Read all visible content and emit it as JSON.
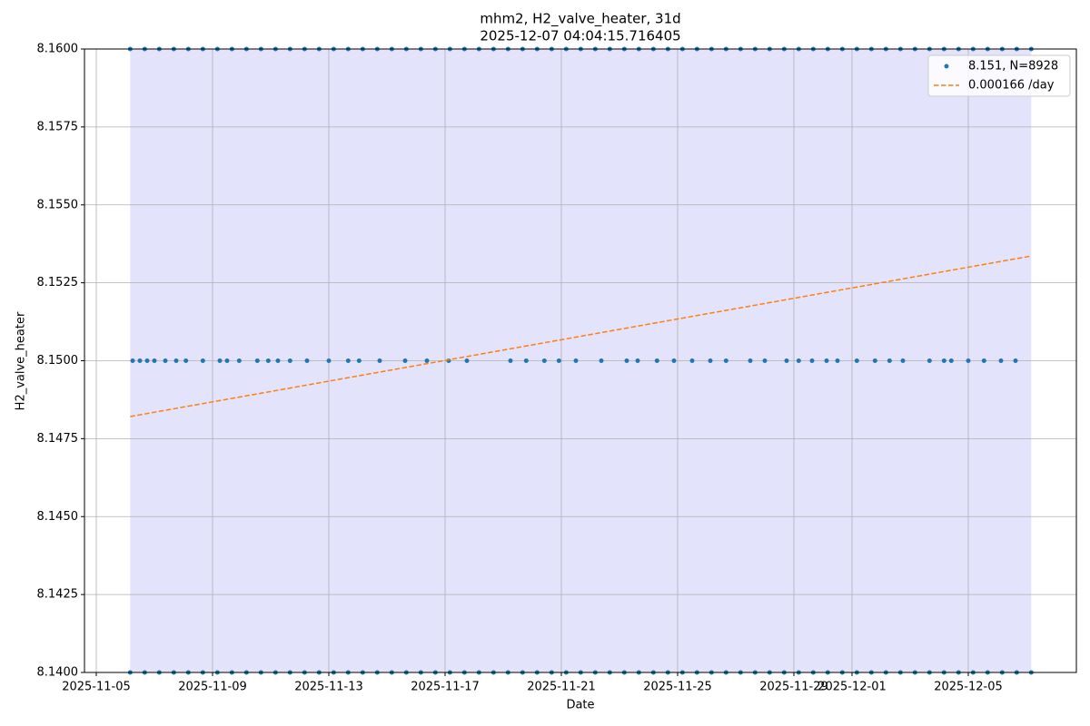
{
  "chart_data": {
    "type": "scatter",
    "title": "mhm2, H2_valve_heater, 31d",
    "subtitle": "2025-12-07 04:04:15.716405",
    "xlabel": "Date",
    "ylabel": "H2_valve_heater",
    "xlim": [
      "2025-11-04 14:15",
      "2025-12-08 17:15"
    ],
    "ylim": [
      8.14,
      8.16
    ],
    "xticks": [
      "2025-11-05",
      "2025-11-09",
      "2025-11-13",
      "2025-11-17",
      "2025-11-21",
      "2025-11-25",
      "2025-11-29",
      "2025-12-01",
      "2025-12-05"
    ],
    "yticks": [
      {
        "value": 8.14,
        "label": "8.1400"
      },
      8.1425,
      {
        "value": 8.145,
        "label": "8.1450"
      },
      8.1475,
      {
        "value": 8.15,
        "label": "8.1500"
      },
      8.1525,
      {
        "value": 8.155,
        "label": "8.1550"
      },
      8.1575,
      {
        "value": 8.16,
        "label": "8.1600"
      }
    ],
    "grid": true,
    "legend": "upper right",
    "span": {
      "x": [
        "2025-11-06 04:00",
        "2025-12-07 04:00"
      ],
      "color": "#e3e3fc"
    },
    "series": [
      {
        "name": "8.151, N=8928",
        "type": "scatter",
        "color": "#1f77b4",
        "x": [
          "2025-11-06 04:00",
          "2025-11-06 16:00",
          "2025-11-07 04:00",
          "2025-11-07 16:00",
          "2025-11-08 04:00",
          "2025-11-08 16:00",
          "2025-11-09 04:00",
          "2025-11-09 16:00",
          "2025-11-10 04:00",
          "2025-11-10 16:00",
          "2025-11-11 04:00",
          "2025-11-11 16:00",
          "2025-11-12 04:00",
          "2025-11-12 16:00",
          "2025-11-13 04:00",
          "2025-11-13 16:00",
          "2025-11-14 04:00",
          "2025-11-14 16:00",
          "2025-11-15 04:00",
          "2025-11-15 16:00",
          "2025-11-16 04:00",
          "2025-11-16 16:00",
          "2025-11-17 04:00",
          "2025-11-17 16:00",
          "2025-11-18 04:00",
          "2025-11-18 16:00",
          "2025-11-19 04:00",
          "2025-11-19 16:00",
          "2025-11-20 04:00",
          "2025-11-20 16:00",
          "2025-11-21 04:00",
          "2025-11-21 16:00",
          "2025-11-22 04:00",
          "2025-11-22 16:00",
          "2025-11-23 04:00",
          "2025-11-23 16:00",
          "2025-11-24 04:00",
          "2025-11-24 16:00",
          "2025-11-25 04:00",
          "2025-11-25 16:00",
          "2025-11-26 04:00",
          "2025-11-26 16:00",
          "2025-11-27 04:00",
          "2025-11-27 16:00",
          "2025-11-28 04:00",
          "2025-11-28 16:00",
          "2025-11-29 04:00",
          "2025-11-29 16:00",
          "2025-11-30 04:00",
          "2025-11-30 16:00",
          "2025-12-01 04:00",
          "2025-12-01 16:00",
          "2025-12-02 04:00",
          "2025-12-02 16:00",
          "2025-12-03 04:00",
          "2025-12-03 16:00",
          "2025-12-04 04:00",
          "2025-12-04 16:00",
          "2025-12-05 04:00",
          "2025-12-05 16:00",
          "2025-12-06 04:00",
          "2025-12-06 16:00",
          "2025-12-07 04:00",
          "2025-11-06 04:00",
          "2025-11-06 16:00",
          "2025-11-07 04:00",
          "2025-11-07 16:00",
          "2025-11-08 04:00",
          "2025-11-08 16:00",
          "2025-11-09 04:00",
          "2025-11-09 16:00",
          "2025-11-10 04:00",
          "2025-11-10 16:00",
          "2025-11-11 04:00",
          "2025-11-11 16:00",
          "2025-11-12 04:00",
          "2025-11-12 16:00",
          "2025-11-13 04:00",
          "2025-11-13 16:00",
          "2025-11-14 04:00",
          "2025-11-14 16:00",
          "2025-11-15 04:00",
          "2025-11-15 16:00",
          "2025-11-16 04:00",
          "2025-11-16 16:00",
          "2025-11-17 04:00",
          "2025-11-17 16:00",
          "2025-11-18 04:00",
          "2025-11-18 16:00",
          "2025-11-19 04:00",
          "2025-11-19 16:00",
          "2025-11-20 04:00",
          "2025-11-20 16:00",
          "2025-11-21 04:00",
          "2025-11-21 16:00",
          "2025-11-22 04:00",
          "2025-11-22 16:00",
          "2025-11-23 04:00",
          "2025-11-23 16:00",
          "2025-11-24 04:00",
          "2025-11-24 16:00",
          "2025-11-25 04:00",
          "2025-11-25 16:00",
          "2025-11-26 04:00",
          "2025-11-26 16:00",
          "2025-11-27 04:00",
          "2025-11-27 16:00",
          "2025-11-28 04:00",
          "2025-11-28 16:00",
          "2025-11-29 04:00",
          "2025-11-29 16:00",
          "2025-11-30 04:00",
          "2025-11-30 16:00",
          "2025-12-01 04:00",
          "2025-12-01 16:00",
          "2025-12-02 04:00",
          "2025-12-02 16:00",
          "2025-12-03 04:00",
          "2025-12-03 16:00",
          "2025-12-04 04:00",
          "2025-12-04 16:00",
          "2025-12-05 04:00",
          "2025-12-05 16:00",
          "2025-12-06 04:00",
          "2025-12-06 16:00",
          "2025-12-07 04:00",
          "2025-11-06 06:00",
          "2025-11-06 12:00",
          "2025-11-06 18:00",
          "2025-11-07 00:00",
          "2025-11-07 09:00",
          "2025-11-07 18:00",
          "2025-11-08 02:00",
          "2025-11-08 16:00",
          "2025-11-09 06:00",
          "2025-11-09 12:00",
          "2025-11-09 22:00",
          "2025-11-10 13:00",
          "2025-11-10 22:00",
          "2025-11-11 06:00",
          "2025-11-11 16:00",
          "2025-11-12 06:00",
          "2025-11-13 00:00",
          "2025-11-13 16:00",
          "2025-11-14 01:00",
          "2025-11-14 18:00",
          "2025-11-15 15:00",
          "2025-11-16 09:00",
          "2025-11-17 03:00",
          "2025-11-17 18:00",
          "2025-11-19 06:00",
          "2025-11-19 19:00",
          "2025-11-20 10:00",
          "2025-11-20 22:00",
          "2025-11-21 12:00",
          "2025-11-22 09:00",
          "2025-11-23 06:00",
          "2025-11-23 15:00",
          "2025-11-24 07:00",
          "2025-11-24 21:00",
          "2025-11-25 12:00",
          "2025-11-26 03:00",
          "2025-11-26 16:00",
          "2025-11-27 12:00",
          "2025-11-28 00:00",
          "2025-11-28 18:00",
          "2025-11-29 04:00",
          "2025-11-29 15:00",
          "2025-11-30 03:00",
          "2025-11-30 12:00",
          "2025-12-01 04:00",
          "2025-12-01 19:00",
          "2025-12-02 07:00",
          "2025-12-02 18:00",
          "2025-12-03 16:00",
          "2025-12-04 04:00",
          "2025-12-04 10:00",
          "2025-12-05 00:00",
          "2025-12-05 13:00",
          "2025-12-06 03:00",
          "2025-12-06 15:00"
        ],
        "values": [
          8.16,
          8.16,
          8.16,
          8.16,
          8.16,
          8.16,
          8.16,
          8.16,
          8.16,
          8.16,
          8.16,
          8.16,
          8.16,
          8.16,
          8.16,
          8.16,
          8.16,
          8.16,
          8.16,
          8.16,
          8.16,
          8.16,
          8.16,
          8.16,
          8.16,
          8.16,
          8.16,
          8.16,
          8.16,
          8.16,
          8.16,
          8.16,
          8.16,
          8.16,
          8.16,
          8.16,
          8.16,
          8.16,
          8.16,
          8.16,
          8.16,
          8.16,
          8.16,
          8.16,
          8.16,
          8.16,
          8.16,
          8.16,
          8.16,
          8.16,
          8.16,
          8.16,
          8.16,
          8.16,
          8.16,
          8.16,
          8.16,
          8.16,
          8.16,
          8.16,
          8.16,
          8.16,
          8.16,
          8.14,
          8.14,
          8.14,
          8.14,
          8.14,
          8.14,
          8.14,
          8.14,
          8.14,
          8.14,
          8.14,
          8.14,
          8.14,
          8.14,
          8.14,
          8.14,
          8.14,
          8.14,
          8.14,
          8.14,
          8.14,
          8.14,
          8.14,
          8.14,
          8.14,
          8.14,
          8.14,
          8.14,
          8.14,
          8.14,
          8.14,
          8.14,
          8.14,
          8.14,
          8.14,
          8.14,
          8.14,
          8.14,
          8.14,
          8.14,
          8.14,
          8.14,
          8.14,
          8.14,
          8.14,
          8.14,
          8.14,
          8.14,
          8.14,
          8.14,
          8.14,
          8.14,
          8.14,
          8.14,
          8.14,
          8.14,
          8.14,
          8.14,
          8.14,
          8.14,
          8.14,
          8.14,
          8.14,
          8.15,
          8.15,
          8.15,
          8.15,
          8.15,
          8.15,
          8.15,
          8.15,
          8.15,
          8.15,
          8.15,
          8.15,
          8.15,
          8.15,
          8.15,
          8.15,
          8.15,
          8.15,
          8.15,
          8.15,
          8.15,
          8.15,
          8.15,
          8.15,
          8.15,
          8.15,
          8.15,
          8.15,
          8.15,
          8.15,
          8.15,
          8.15,
          8.15,
          8.15,
          8.15,
          8.15,
          8.15,
          8.15,
          8.15,
          8.15,
          8.15,
          8.15,
          8.15,
          8.15,
          8.15,
          8.15,
          8.15,
          8.15,
          8.15,
          8.15,
          8.15,
          8.15,
          8.15,
          8.15,
          8.15
        ]
      },
      {
        "name": "0.000166 /day",
        "type": "line",
        "style": "dashed",
        "color": "#ff7f0e",
        "x": [
          "2025-11-06 04:00",
          "2025-12-07 04:00"
        ],
        "values": [
          8.14821,
          8.15336
        ]
      }
    ]
  }
}
